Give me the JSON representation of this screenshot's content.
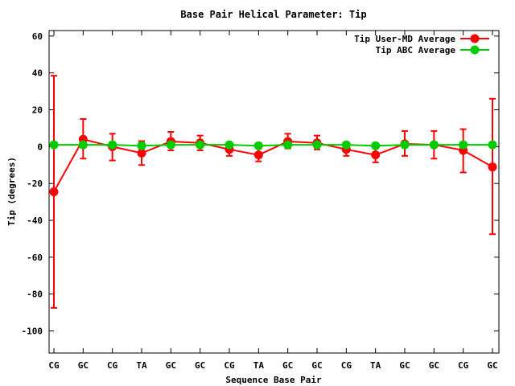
{
  "chart_data": {
    "type": "line",
    "title": "Base Pair Helical Parameter: Tip",
    "xlabel": "Sequence Base Pair",
    "ylabel": "Tip (degrees)",
    "ylim": [
      -112,
      63
    ],
    "yticks": [
      60,
      40,
      20,
      0,
      -20,
      -40,
      -60,
      -80,
      -100
    ],
    "categories": [
      "CG",
      "GC",
      "CG",
      "TA",
      "GC",
      "GC",
      "CG",
      "TA",
      "GC",
      "GC",
      "CG",
      "TA",
      "GC",
      "GC",
      "CG",
      "GC"
    ],
    "grid": false,
    "legend_position": "top-right",
    "series": [
      {
        "name": "Tip User-MD Average",
        "color": "#ff0000",
        "values": [
          -24.5,
          4,
          0,
          -3.5,
          2.8,
          2,
          -1.5,
          -4.5,
          2.8,
          2,
          -1.5,
          -4.5,
          1.5,
          1,
          -2,
          -11
        ],
        "error_low": [
          -87.5,
          -6.5,
          -7.5,
          -10,
          -2,
          -2,
          -5,
          -8,
          -1,
          -1.5,
          -5,
          -8.5,
          -5,
          -6.5,
          -14,
          -47.5
        ],
        "error_high": [
          38.5,
          15,
          7,
          3,
          8,
          6,
          1.5,
          -1,
          7,
          6,
          2,
          -1,
          8.5,
          8.5,
          9.5,
          26
        ]
      },
      {
        "name": "Tip ABC Average",
        "color": "#00cc00",
        "values": [
          1,
          1,
          1,
          0.5,
          1,
          1,
          1,
          0.5,
          1,
          1,
          1,
          0.5,
          1,
          1,
          1,
          1
        ],
        "error_low": [
          0,
          0,
          0,
          -1,
          0,
          0,
          0,
          -0.5,
          0,
          0,
          0,
          -0.5,
          0,
          0,
          0,
          0
        ],
        "error_high": [
          2,
          2,
          2,
          2,
          2,
          2,
          2,
          1.5,
          2,
          2,
          2,
          1.5,
          2,
          2,
          2,
          2
        ]
      }
    ]
  }
}
